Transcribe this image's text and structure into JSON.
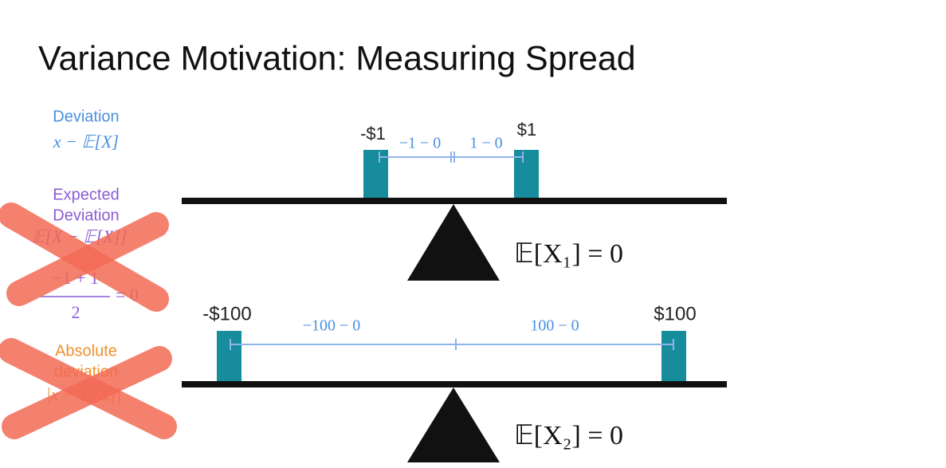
{
  "title": "Variance Motivation: Measuring Spread",
  "sidebar": {
    "deviation": {
      "label": "Deviation",
      "formula": "x − 𝔼[X]"
    },
    "expected_deviation": {
      "label_line1": "Expected",
      "label_line2": "Deviation",
      "formula": "𝔼[X − 𝔼[X]]",
      "numerator": "−1 + 1",
      "denominator": "2",
      "result": "= 0"
    },
    "absolute_deviation": {
      "label_line1": "Absolute",
      "label_line2": "deviation",
      "formula": "|x − 𝔼[X]|"
    }
  },
  "seesaw_1": {
    "left_value": "-$1",
    "right_value": "$1",
    "left_deviation": "−1 − 0",
    "right_deviation": "1 − 0",
    "expectation": "𝔼[X₁] = 0"
  },
  "seesaw_2": {
    "left_value": "-$100",
    "right_value": "$100",
    "left_deviation": "−100 − 0",
    "right_deviation": "100 − 0",
    "expectation": "𝔼[X₂] = 0"
  }
}
